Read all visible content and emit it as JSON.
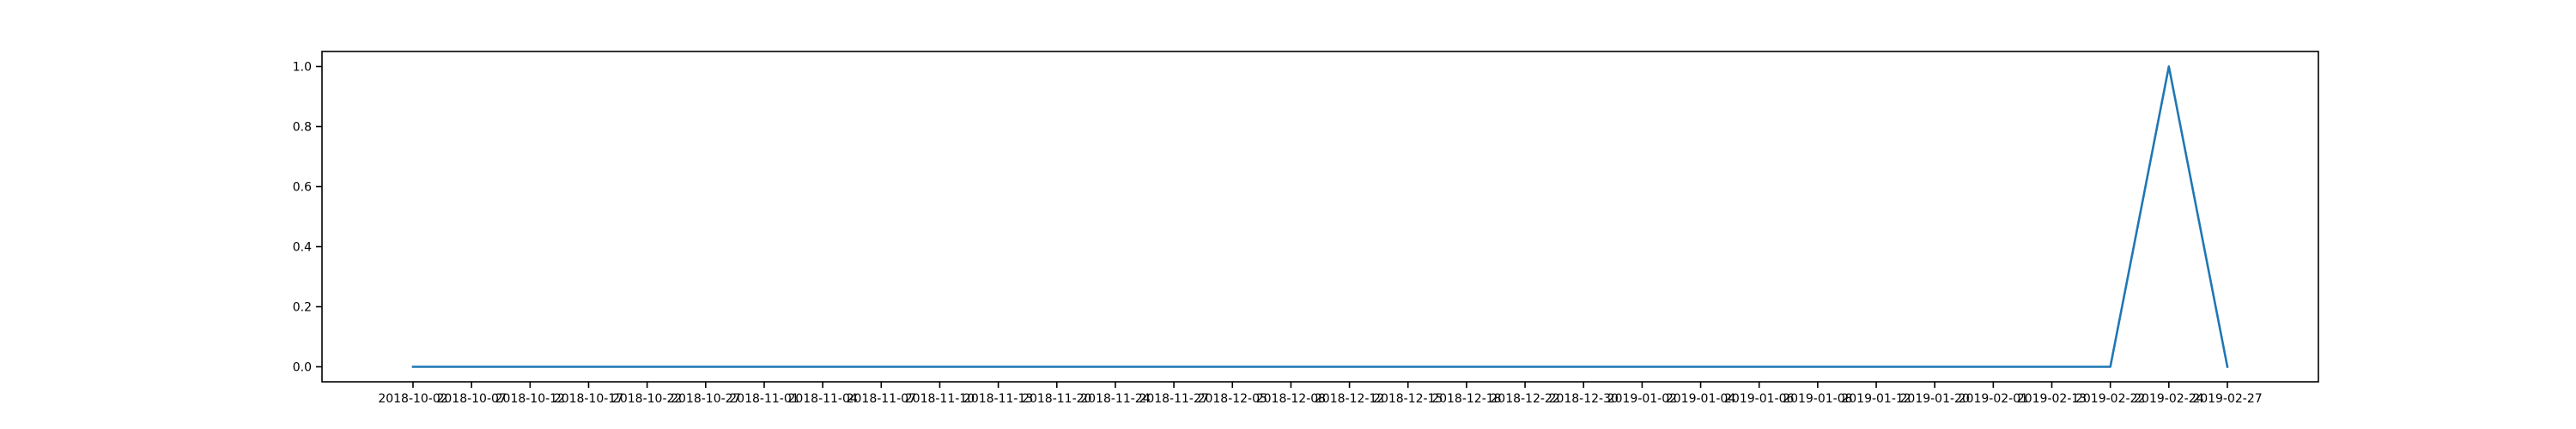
{
  "chart_data": {
    "type": "line",
    "title": "",
    "xlabel": "",
    "ylabel": "",
    "ylim": [
      -0.05,
      1.05
    ],
    "grid": false,
    "legend": "none",
    "categories": [
      "2018-10-02",
      "2018-10-07",
      "2018-10-12",
      "2018-10-17",
      "2018-10-22",
      "2018-10-27",
      "2018-11-01",
      "2018-11-04",
      "2018-11-07",
      "2018-11-10",
      "2018-11-13",
      "2018-11-20",
      "2018-11-24",
      "2018-11-27",
      "2018-12-05",
      "2018-12-08",
      "2018-12-12",
      "2018-12-15",
      "2018-12-18",
      "2018-12-22",
      "2018-12-30",
      "2019-01-02",
      "2019-01-04",
      "2019-01-06",
      "2019-01-08",
      "2019-01-12",
      "2019-01-20",
      "2019-02-01",
      "2019-02-13",
      "2019-02-22",
      "2019-02-24",
      "2019-02-27"
    ],
    "yticks": [
      "0.0",
      "0.2",
      "0.4",
      "0.6",
      "0.8",
      "1.0"
    ],
    "series": [
      {
        "name": "",
        "color": "#1f77b4",
        "values": [
          0,
          0,
          0,
          0,
          0,
          0,
          0,
          0,
          0,
          0,
          0,
          0,
          0,
          0,
          0,
          0,
          0,
          0,
          0,
          0,
          0,
          0,
          0,
          0,
          0,
          0,
          0,
          0,
          0,
          0,
          1,
          0
        ]
      }
    ]
  }
}
